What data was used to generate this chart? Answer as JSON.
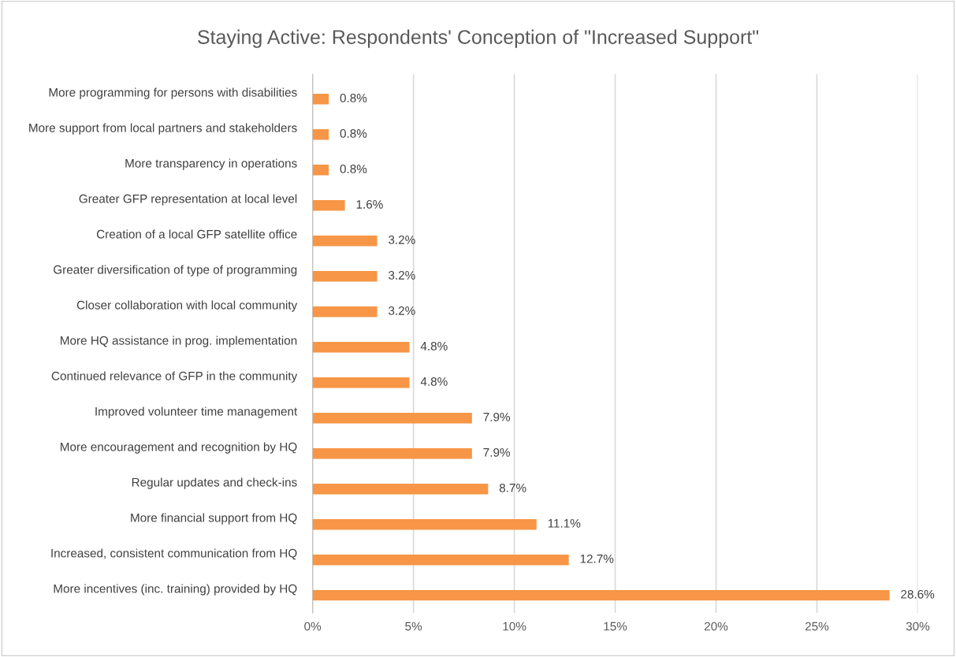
{
  "chart_data": {
    "type": "bar",
    "orientation": "horizontal",
    "title": "Staying Active: Respondents' Conception of \"Increased Support\"",
    "categories": [
      "More programming for persons with disabilities",
      "More support from local partners and stakeholders",
      "More transparency in operations",
      "Greater GFP representation at local level",
      "Creation of a local GFP satellite office",
      "Greater diversification of type of programming",
      "Closer collaboration with local community",
      "More HQ assistance in prog. implementation",
      "Continued relevance of GFP in the community",
      "Improved volunteer time management",
      "More encouragement and recognition by HQ",
      "Regular updates and check-ins",
      "More financial support from HQ",
      "Increased, consistent communication from HQ",
      "More incentives (inc. training) provided by HQ"
    ],
    "values": [
      0.8,
      0.8,
      0.8,
      1.6,
      3.2,
      3.2,
      3.2,
      4.8,
      4.8,
      7.9,
      7.9,
      8.7,
      11.1,
      12.7,
      28.6
    ],
    "value_labels": [
      "0.8%",
      "0.8%",
      "0.8%",
      "1.6%",
      "3.2%",
      "3.2%",
      "3.2%",
      "4.8%",
      "4.8%",
      "7.9%",
      "7.9%",
      "8.7%",
      "11.1%",
      "12.7%",
      "28.6%"
    ],
    "color": "#f79646",
    "xlim": [
      0,
      30
    ],
    "xticks": [
      {
        "value": 0,
        "label": "0%"
      },
      {
        "value": 5,
        "label": "5%"
      },
      {
        "value": 10,
        "label": "10%"
      },
      {
        "value": 15,
        "label": "15%"
      },
      {
        "value": 20,
        "label": "20%"
      },
      {
        "value": 25,
        "label": "25%"
      },
      {
        "value": 30,
        "label": "30%"
      }
    ],
    "grid": "x",
    "legend": false
  }
}
